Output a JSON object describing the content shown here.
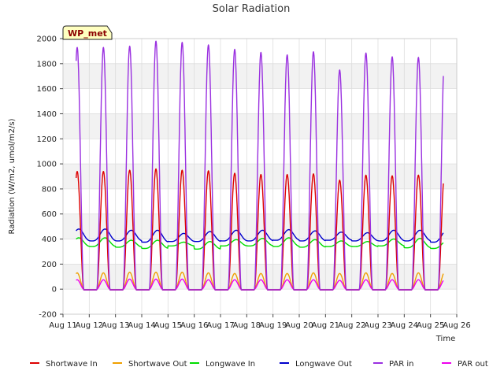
{
  "chart_data": {
    "type": "line",
    "title": "Solar Radiation",
    "badge": "WP_met",
    "xlabel": "Time",
    "ylabel": "Radiation (W/m2, umol/m2/s)",
    "xlim": [
      "2024-08-11",
      "2024-08-26"
    ],
    "ylim": [
      -200,
      2000
    ],
    "x_tick_labels": [
      "Aug 11",
      "Aug 12",
      "Aug 13",
      "Aug 14",
      "Aug 15",
      "Aug 16",
      "Aug 17",
      "Aug 18",
      "Aug 19",
      "Aug 20",
      "Aug 21",
      "Aug 22",
      "Aug 23",
      "Aug 24",
      "Aug 25",
      "Aug 26"
    ],
    "y_ticks": [
      -200,
      0,
      200,
      400,
      600,
      800,
      1000,
      1200,
      1400,
      1600,
      1800,
      2000
    ],
    "grid": true,
    "legend_position": "bottom",
    "days": [
      "2024-08-12",
      "2024-08-13",
      "2024-08-14",
      "2024-08-15",
      "2024-08-16",
      "2024-08-17",
      "2024-08-18",
      "2024-08-19",
      "2024-08-20",
      "2024-08-21",
      "2024-08-22",
      "2024-08-23",
      "2024-08-24",
      "2024-08-25"
    ],
    "series": [
      {
        "name": "Shortwave In",
        "color": "#dd0000",
        "daily_peak": [
          940,
          950,
          960,
          950,
          945,
          925,
          915,
          915,
          920,
          870,
          910,
          905,
          910,
          925
        ]
      },
      {
        "name": "Shortwave Out",
        "color": "#f0a000",
        "daily_peak": [
          130,
          135,
          135,
          135,
          130,
          125,
          125,
          125,
          130,
          125,
          130,
          125,
          130,
          135
        ]
      },
      {
        "name": "Longwave In",
        "color": "#00dd00",
        "daily_peak": [
          410,
          390,
          390,
          375,
          380,
          395,
          405,
          410,
          395,
          385,
          380,
          400,
          405,
          380
        ],
        "daily_min": [
          340,
          335,
          325,
          345,
          320,
          345,
          345,
          340,
          335,
          340,
          340,
          345,
          330,
          325
        ]
      },
      {
        "name": "Longwave Out",
        "color": "#0000cc",
        "daily_peak": [
          480,
          470,
          470,
          445,
          460,
          470,
          470,
          475,
          465,
          455,
          450,
          470,
          470,
          465
        ],
        "daily_min": [
          385,
          385,
          375,
          380,
          380,
          385,
          385,
          390,
          385,
          390,
          385,
          385,
          385,
          375
        ]
      },
      {
        "name": "PAR in",
        "color": "#9a30e0",
        "daily_peak": [
          1930,
          1940,
          1980,
          1970,
          1950,
          1915,
          1890,
          1870,
          1895,
          1750,
          1885,
          1855,
          1850,
          1865
        ]
      },
      {
        "name": "PAR out",
        "color": "#ee00ee",
        "daily_peak": [
          75,
          80,
          80,
          80,
          75,
          75,
          75,
          75,
          75,
          70,
          75,
          75,
          75,
          75
        ]
      }
    ]
  }
}
